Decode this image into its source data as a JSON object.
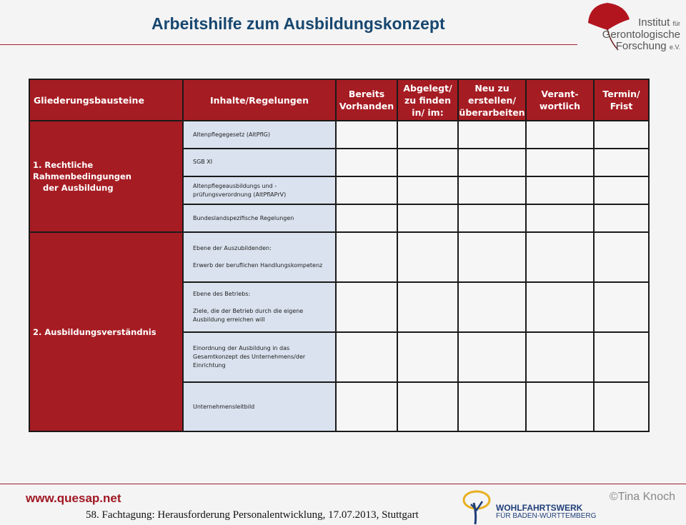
{
  "header": {
    "title": "Arbeitshilfe zum Ausbildungskonzept",
    "logo_text": [
      "Institut",
      "für",
      "Gerontologische",
      "Forschung",
      "e.V."
    ]
  },
  "table": {
    "columns": [
      "Gliederungsbausteine",
      "Inhalte/Regelungen",
      "Bereits Vorhanden",
      "Abgelegt/ zu finden in/ im:",
      "Neu zu erstellen/ überarbeiten",
      "Verant-wortlich",
      "Termin/ Frist"
    ],
    "sections": [
      {
        "label_line1": "1. Rechtliche Rahmenbedingungen",
        "label_line2": "der Ausbildung",
        "rows": [
          {
            "line1": "Altenpflegegesetz (AltPflG)"
          },
          {
            "line1": "SGB XI"
          },
          {
            "line1": "Altenpflegeausbildungs und -",
            "line2": "prüfungsverordnung (AltPflAPrV)"
          },
          {
            "line1": "Bundeslandspezifische Regelungen"
          }
        ]
      },
      {
        "label_line1": "2. Ausbildungsverständnis",
        "rows": [
          {
            "line1": "Ebene der Auszubildenden:",
            "line2": "Erwerb der beruflichen Handlungskompetenz"
          },
          {
            "line1": "Ebene des Betriebs:",
            "line2": "Ziele, die der Betrieb durch die eigene",
            "line3": "Ausbildung erreichen will"
          },
          {
            "line1": "Einordnung der Ausbildung in das",
            "line2": "Gesamtkonzept des Unternehmens/der",
            "line3": "Einrichtung"
          },
          {
            "line1": "Unternehmensleitbild"
          }
        ]
      }
    ]
  },
  "footer": {
    "url": "www.quesap.net",
    "event": "58. Fachtagung: Herausforderung Personalentwicklung, 17.07.2013, Stuttgart",
    "copyright": "©Tina Knoch",
    "sponsor_line1": "WOHLFAHRTSWERK",
    "sponsor_line2": "FÜR BADEN-WÜRTTEMBERG"
  },
  "colors": {
    "accent_red": "#a61c23",
    "title_blue": "#17476f",
    "content_blue": "#d9e2ee"
  }
}
